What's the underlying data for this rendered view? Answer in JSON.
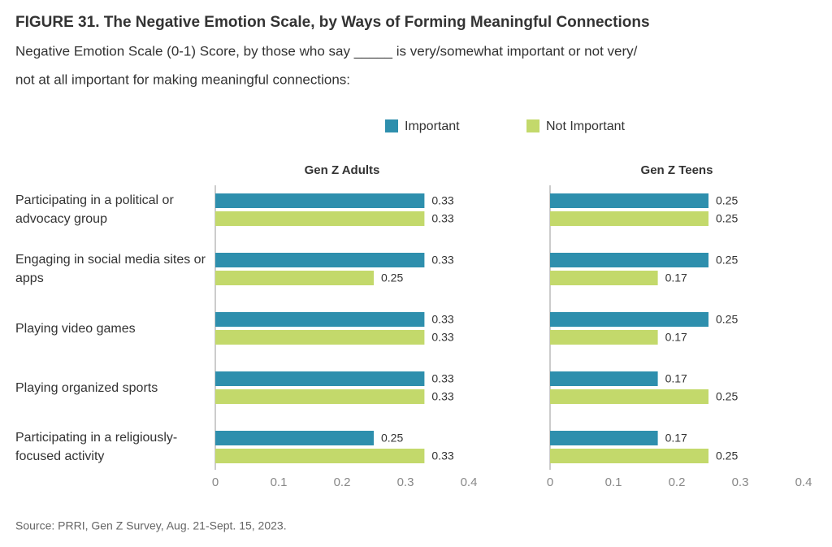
{
  "title": "FIGURE 31.  The Negative Emotion Scale, by Ways of Forming Meaningful Connections",
  "subtitle_lines": [
    "Negative Emotion Scale (0-1) Score, by those who say _____ is very/somewhat important or not very/",
    "not at all important for making meaningful connections:"
  ],
  "source": "Source: PRRI, Gen Z Survey, Aug. 21-Sept. 15, 2023.",
  "chart_data": [
    {
      "type": "bar",
      "orientation": "horizontal",
      "title": "Gen Z Adults",
      "categories": [
        "Participating in a political or advocacy group",
        "Engaging in social media sites or apps",
        "Playing video games",
        "Playing organized sports",
        "Participating in a religiously-focused activity"
      ],
      "series": [
        {
          "name": "Important",
          "color": "#2e8fad",
          "values": [
            0.33,
            0.33,
            0.33,
            0.33,
            0.25
          ]
        },
        {
          "name": "Not Important",
          "color": "#c3d96b",
          "values": [
            0.33,
            0.25,
            0.33,
            0.33,
            0.33
          ]
        }
      ],
      "xlim": [
        0,
        0.4
      ],
      "xticks": [
        0,
        0.1,
        0.2,
        0.3,
        0.4
      ]
    },
    {
      "type": "bar",
      "orientation": "horizontal",
      "title": "Gen Z Teens",
      "categories": [
        "Participating in a political or advocacy group",
        "Engaging in social media sites or apps",
        "Playing video games",
        "Playing organized sports",
        "Participating in a religiously-focused activity"
      ],
      "series": [
        {
          "name": "Important",
          "color": "#2e8fad",
          "values": [
            0.25,
            0.25,
            0.25,
            0.17,
            0.17
          ]
        },
        {
          "name": "Not Important",
          "color": "#c3d96b",
          "values": [
            0.25,
            0.17,
            0.17,
            0.25,
            0.25
          ]
        }
      ],
      "xlim": [
        0,
        0.4
      ],
      "xticks": [
        0,
        0.1,
        0.2,
        0.3,
        0.4
      ]
    }
  ]
}
